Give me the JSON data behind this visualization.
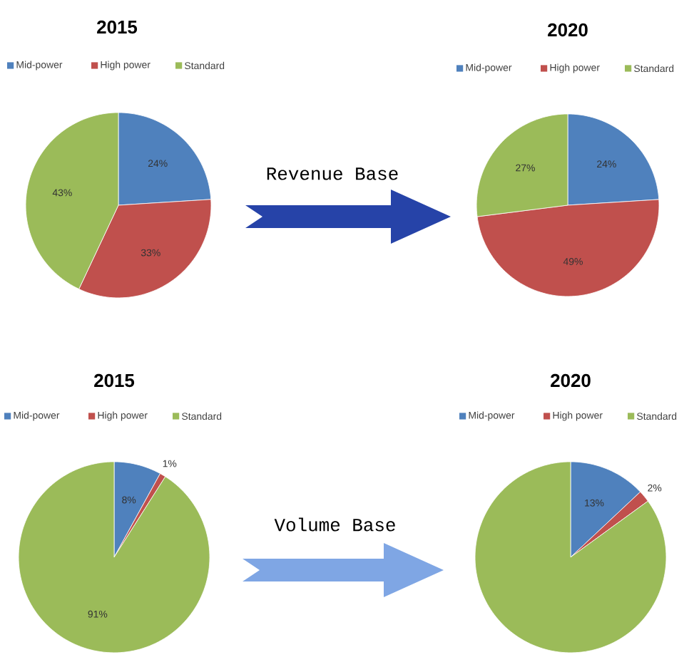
{
  "chart_data": [
    {
      "type": "pie",
      "title": "2015",
      "categories": [
        "Mid-power",
        "High power",
        "Standard"
      ],
      "values": [
        24,
        33,
        43
      ],
      "value_labels": [
        "24%",
        "33%",
        "43%"
      ],
      "colors": [
        "#4f81bd",
        "#c0504d",
        "#9bbb59"
      ],
      "legend": "top",
      "annotations": [
        "Revenue Base"
      ]
    },
    {
      "type": "pie",
      "title": "2020",
      "categories": [
        "Mid-power",
        "High power",
        "Standard"
      ],
      "values": [
        24,
        49,
        27
      ],
      "value_labels": [
        "24%",
        "49%",
        "27%"
      ],
      "colors": [
        "#4f81bd",
        "#c0504d",
        "#9bbb59"
      ],
      "legend": "top"
    },
    {
      "type": "pie",
      "title": "2015",
      "categories": [
        "Mid-power",
        "High power",
        "Standard"
      ],
      "values": [
        8,
        1,
        91
      ],
      "value_labels": [
        "8%",
        "1%",
        "91%"
      ],
      "colors": [
        "#4f81bd",
        "#c0504d",
        "#9bbb59"
      ],
      "legend": "top",
      "annotations": [
        "Volume Base"
      ]
    },
    {
      "type": "pie",
      "title": "2020",
      "categories": [
        "Mid-power",
        "High power",
        "Standard"
      ],
      "values": [
        13,
        2,
        85
      ],
      "value_labels": [
        "13%",
        "2%",
        null
      ],
      "colors": [
        "#4f81bd",
        "#c0504d",
        "#9bbb59"
      ],
      "legend": "top"
    }
  ]
}
